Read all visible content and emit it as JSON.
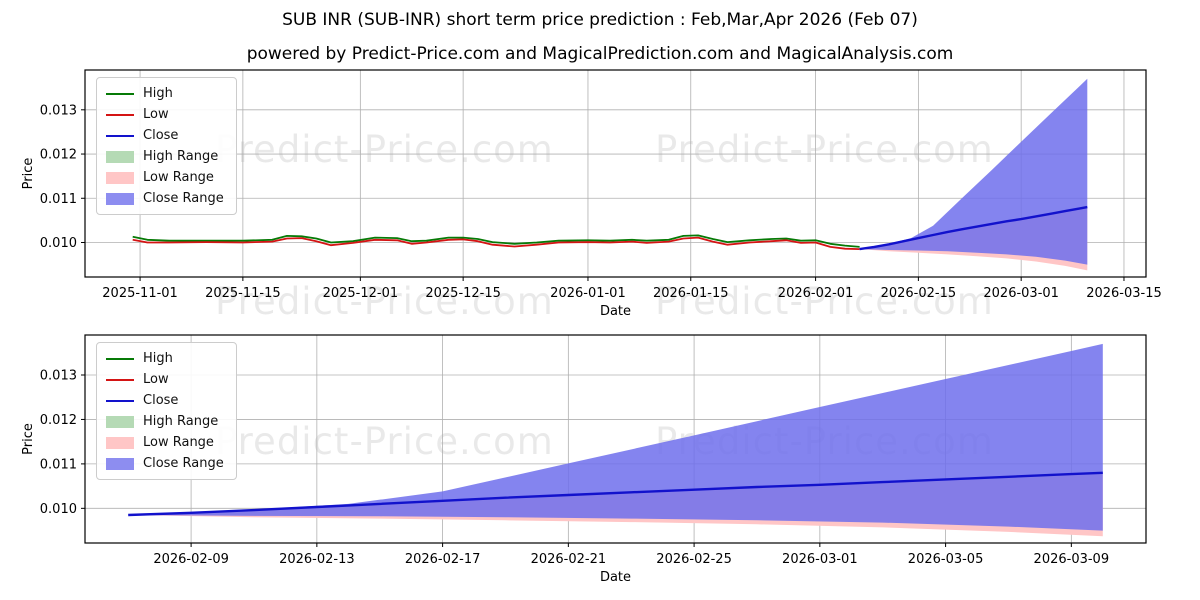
{
  "header": {
    "title": "SUB INR (SUB-INR) short term price prediction : Feb,Mar,Apr 2026 (Feb 07)",
    "subtitle": "powered by Predict-Price.com and MagicalPrediction.com and MagicalAnalysis.com"
  },
  "watermark": {
    "text": "Predict-Price.com"
  },
  "legend": {
    "items": [
      {
        "label": "High",
        "type": "line",
        "color": "#067a06"
      },
      {
        "label": "Low",
        "type": "line",
        "color": "#d41414"
      },
      {
        "label": "Close",
        "type": "line",
        "color": "#1212cc"
      },
      {
        "label": "High Range",
        "type": "patch",
        "color": "#b5dab5"
      },
      {
        "label": "Low Range",
        "type": "patch",
        "color": "#ffc6c6"
      },
      {
        "label": "Close Range",
        "type": "patch",
        "color": "#8d8df0"
      }
    ]
  },
  "chart_data": {
    "type": "line",
    "title": "SUB INR (SUB-INR) short term price prediction : Feb,Mar,Apr 2026 (Feb 07)",
    "grid": true,
    "colors": {
      "high": "#067a06",
      "low": "#d41414",
      "close": "#1212cc",
      "low_range": "#ffc6c6",
      "close_range": "#6f6fec"
    },
    "charts": [
      {
        "id": "top",
        "name": "full history and prediction",
        "xlabel": "Date",
        "ylabel": "Price",
        "x_domain": [
          "2025-10-24T12:00:00Z",
          "2026-03-18T00:00:00Z"
        ],
        "y_domain": [
          0.00922,
          0.0139
        ],
        "x_ticks": [
          "2025-11-01",
          "2025-11-15",
          "2025-12-01",
          "2025-12-15",
          "2026-01-01",
          "2026-01-15",
          "2026-02-01",
          "2026-02-15",
          "2026-03-01",
          "2026-03-15"
        ],
        "y_ticks": [
          0.01,
          0.011,
          0.012,
          0.013
        ],
        "show_history": true
      },
      {
        "id": "bottom",
        "name": "prediction zoom",
        "xlabel": "Date",
        "ylabel": "Price",
        "x_domain": [
          "2026-02-05T15:00:00Z",
          "2026-03-11T09:00:00Z"
        ],
        "y_domain": [
          0.00922,
          0.0139
        ],
        "x_ticks": [
          "2026-02-09",
          "2026-02-13",
          "2026-02-17",
          "2026-02-21",
          "2026-02-25",
          "2026-03-01",
          "2026-03-05",
          "2026-03-09"
        ],
        "y_ticks": [
          0.01,
          0.011,
          0.012,
          0.013
        ],
        "show_history": false
      }
    ],
    "series": {
      "history_high": [
        [
          "2025-10-31",
          0.01013
        ],
        [
          "2025-11-02",
          0.01006
        ],
        [
          "2025-11-05",
          0.01004
        ],
        [
          "2025-11-10",
          0.01004
        ],
        [
          "2025-11-15",
          0.01004
        ],
        [
          "2025-11-19",
          0.01006
        ],
        [
          "2025-11-21",
          0.01015
        ],
        [
          "2025-11-23",
          0.01014
        ],
        [
          "2025-11-25",
          0.01009
        ],
        [
          "2025-11-27",
          0.01
        ],
        [
          "2025-11-30",
          0.01003
        ],
        [
          "2025-12-03",
          0.01011
        ],
        [
          "2025-12-06",
          0.0101
        ],
        [
          "2025-12-08",
          0.01003
        ],
        [
          "2025-12-10",
          0.01004
        ],
        [
          "2025-12-13",
          0.01011
        ],
        [
          "2025-12-15",
          0.01011
        ],
        [
          "2025-12-17",
          0.01008
        ],
        [
          "2025-12-19",
          0.01001
        ],
        [
          "2025-12-22",
          0.00997
        ],
        [
          "2025-12-25",
          0.01
        ],
        [
          "2025-12-28",
          0.01004
        ],
        [
          "2026-01-01",
          0.01005
        ],
        [
          "2026-01-04",
          0.01004
        ],
        [
          "2026-01-07",
          0.01006
        ],
        [
          "2026-01-09",
          0.01004
        ],
        [
          "2026-01-12",
          0.01006
        ],
        [
          "2026-01-14",
          0.01015
        ],
        [
          "2026-01-16",
          0.01016
        ],
        [
          "2026-01-18",
          0.01008
        ],
        [
          "2026-01-20",
          0.01001
        ],
        [
          "2026-01-23",
          0.01005
        ],
        [
          "2026-01-26",
          0.01008
        ],
        [
          "2026-01-28",
          0.01009
        ],
        [
          "2026-01-30",
          0.01004
        ],
        [
          "2026-02-01",
          0.01005
        ],
        [
          "2026-02-03",
          0.00997
        ],
        [
          "2026-02-05",
          0.00993
        ],
        [
          "2026-02-07",
          0.0099
        ]
      ],
      "history_low": [
        [
          "2025-10-31",
          0.01006
        ],
        [
          "2025-11-02",
          0.01
        ],
        [
          "2025-11-05",
          0.01
        ],
        [
          "2025-11-10",
          0.01001
        ],
        [
          "2025-11-15",
          0.01
        ],
        [
          "2025-11-19",
          0.01002
        ],
        [
          "2025-11-21",
          0.01009
        ],
        [
          "2025-11-23",
          0.0101
        ],
        [
          "2025-11-25",
          0.01003
        ],
        [
          "2025-11-27",
          0.00994
        ],
        [
          "2025-11-30",
          0.00999
        ],
        [
          "2025-12-03",
          0.01006
        ],
        [
          "2025-12-06",
          0.01005
        ],
        [
          "2025-12-08",
          0.00997
        ],
        [
          "2025-12-10",
          0.01
        ],
        [
          "2025-12-13",
          0.01006
        ],
        [
          "2025-12-15",
          0.01007
        ],
        [
          "2025-12-17",
          0.01003
        ],
        [
          "2025-12-19",
          0.00995
        ],
        [
          "2025-12-22",
          0.00991
        ],
        [
          "2025-12-25",
          0.00995
        ],
        [
          "2025-12-28",
          0.01
        ],
        [
          "2026-01-01",
          0.01001
        ],
        [
          "2026-01-04",
          0.01
        ],
        [
          "2026-01-07",
          0.01002
        ],
        [
          "2026-01-09",
          0.00999
        ],
        [
          "2026-01-12",
          0.01002
        ],
        [
          "2026-01-14",
          0.01009
        ],
        [
          "2026-01-16",
          0.01011
        ],
        [
          "2026-01-18",
          0.01002
        ],
        [
          "2026-01-20",
          0.00995
        ],
        [
          "2026-01-23",
          0.01
        ],
        [
          "2026-01-26",
          0.01003
        ],
        [
          "2026-01-28",
          0.01005
        ],
        [
          "2026-01-30",
          0.00999
        ],
        [
          "2026-02-01",
          0.01
        ],
        [
          "2026-02-03",
          0.0099
        ],
        [
          "2026-02-05",
          0.00986
        ],
        [
          "2026-02-07",
          0.00985
        ]
      ],
      "pred_close": [
        [
          "2026-02-07",
          0.00985
        ],
        [
          "2026-02-09",
          0.0099
        ],
        [
          "2026-02-11",
          0.00996
        ],
        [
          "2026-02-13",
          0.01003
        ],
        [
          "2026-02-15",
          0.0101
        ],
        [
          "2026-02-17",
          0.01017
        ],
        [
          "2026-02-19",
          0.01024
        ],
        [
          "2026-02-21",
          0.0103
        ],
        [
          "2026-02-23",
          0.01036
        ],
        [
          "2026-02-25",
          0.01042
        ],
        [
          "2026-02-27",
          0.01048
        ],
        [
          "2026-03-01",
          0.01053
        ],
        [
          "2026-03-03",
          0.01059
        ],
        [
          "2026-03-05",
          0.01065
        ],
        [
          "2026-03-07",
          0.01071
        ],
        [
          "2026-03-09",
          0.01077
        ],
        [
          "2026-03-10",
          0.0108
        ]
      ],
      "pred_close_upper": [
        [
          "2026-02-07",
          0.00985
        ],
        [
          "2026-02-09",
          0.0099
        ],
        [
          "2026-02-11",
          0.00997
        ],
        [
          "2026-02-14",
          0.0101
        ],
        [
          "2026-02-17",
          0.01038
        ],
        [
          "2026-02-21",
          0.01101
        ],
        [
          "2026-02-25",
          0.01164
        ],
        [
          "2026-03-01",
          0.01228
        ],
        [
          "2026-03-05",
          0.01291
        ],
        [
          "2026-03-09",
          0.01354
        ],
        [
          "2026-03-10",
          0.0137
        ]
      ],
      "pred_close_lower": [
        [
          "2026-02-07",
          0.00985
        ],
        [
          "2026-02-11",
          0.00983
        ],
        [
          "2026-02-15",
          0.00982
        ],
        [
          "2026-02-19",
          0.0098
        ],
        [
          "2026-02-23",
          0.00977
        ],
        [
          "2026-02-27",
          0.00973
        ],
        [
          "2026-03-03",
          0.00968
        ],
        [
          "2026-03-07",
          0.00959
        ],
        [
          "2026-03-10",
          0.0095
        ]
      ],
      "pred_low_lower": [
        [
          "2026-02-07",
          0.00985
        ],
        [
          "2026-02-11",
          0.0098
        ],
        [
          "2026-02-15",
          0.00977
        ],
        [
          "2026-02-19",
          0.00973
        ],
        [
          "2026-02-23",
          0.00969
        ],
        [
          "2026-02-27",
          0.00964
        ],
        [
          "2026-03-03",
          0.00957
        ],
        [
          "2026-03-07",
          0.00947
        ],
        [
          "2026-03-10",
          0.00937
        ]
      ]
    }
  }
}
